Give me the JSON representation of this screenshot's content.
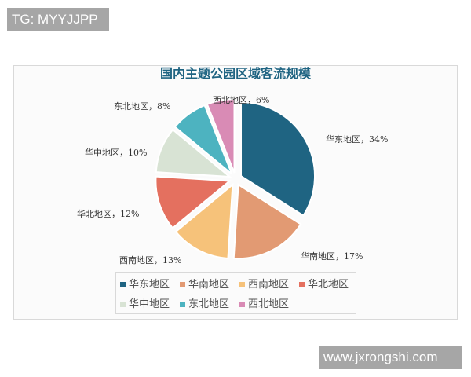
{
  "watermarks": {
    "top": "TG: MYYJJPP",
    "bottom": "www.jxrongshi.com"
  },
  "chart_data": {
    "type": "pie",
    "title": "国内主题公园区域客流规模",
    "categories": [
      "华东地区",
      "华南地区",
      "西南地区",
      "华北地区",
      "华中地区",
      "东北地区",
      "西北地区"
    ],
    "values": [
      34,
      17,
      13,
      12,
      10,
      8,
      6
    ],
    "labels": [
      "华东地区，34%",
      "华南地区，17%",
      "西南地区，13%",
      "华北地区，12%",
      "华中地区，10%",
      "东北地区，8%",
      "西北地区，6%"
    ],
    "colors": [
      "#1f6482",
      "#e29a73",
      "#f6c27a",
      "#e4705f",
      "#d8e3d4",
      "#4db3c0",
      "#d98bb5"
    ],
    "legend": "bottom",
    "exploded": true
  }
}
